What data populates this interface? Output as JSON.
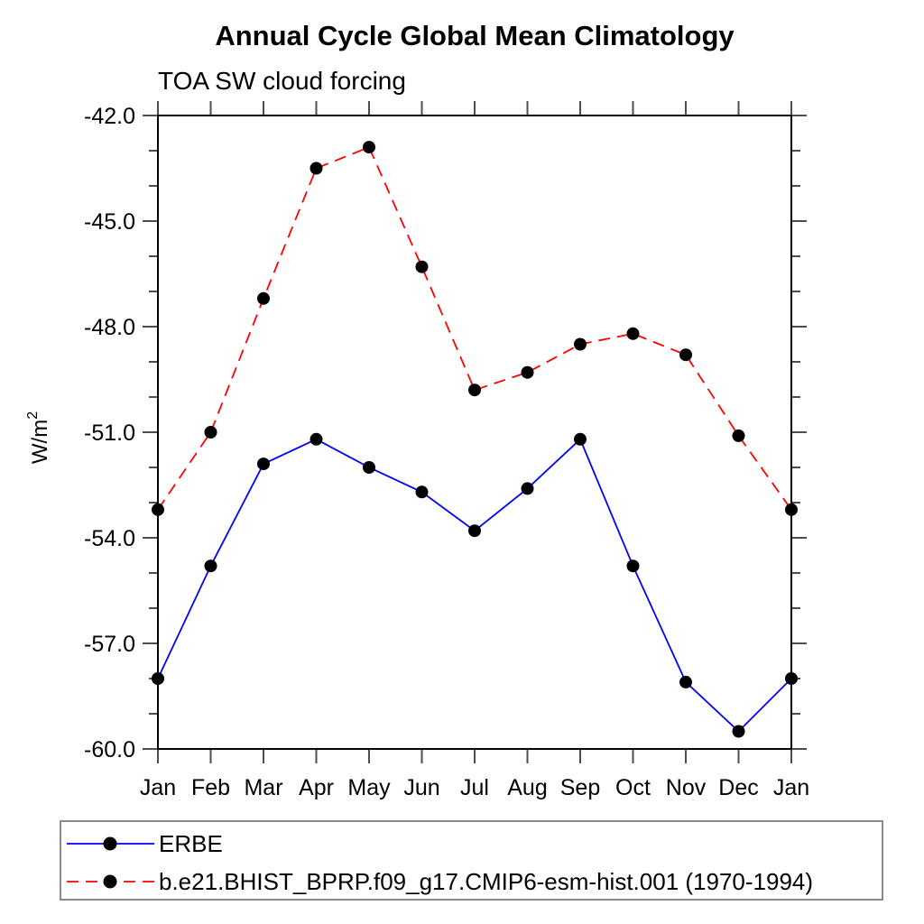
{
  "chart_data": {
    "type": "line",
    "title": "Annual Cycle Global Mean Climatology",
    "subtitle": "TOA SW cloud forcing",
    "ylabel_base": "W/m",
    "ylabel_sup": "2",
    "categories": [
      "Jan",
      "Feb",
      "Mar",
      "Apr",
      "May",
      "Jun",
      "Jul",
      "Aug",
      "Sep",
      "Oct",
      "Nov",
      "Dec",
      "Jan"
    ],
    "ylim": [
      -60,
      -42
    ],
    "yticks": [
      -42,
      -45,
      -48,
      -51,
      -54,
      -57,
      -60
    ],
    "ytick_label_format": "one_decimal",
    "minor_tick_step": 1,
    "grid": false,
    "legend_position": "bottom",
    "marker_color": "#000000",
    "axis_color": "#000000",
    "tick_color": "#4d4d4d",
    "series": [
      {
        "name": "ERBE",
        "color": "#0000ff",
        "line_style": "solid",
        "values": [
          -58.0,
          -54.8,
          -51.9,
          -51.2,
          -52.0,
          -52.7,
          -53.8,
          -52.6,
          -51.2,
          -54.8,
          -58.1,
          -59.5,
          -58.0
        ]
      },
      {
        "name": "b.e21.BHIST_BPRP.f09_g17.CMIP6-esm-hist.001 (1970-1994)",
        "color": "#ff0000",
        "line_style": "dashed",
        "values": [
          -53.2,
          -51.0,
          -47.2,
          -43.5,
          -42.9,
          -46.3,
          -49.8,
          -49.3,
          -48.5,
          -48.2,
          -48.8,
          -51.1,
          -53.2
        ]
      }
    ]
  }
}
